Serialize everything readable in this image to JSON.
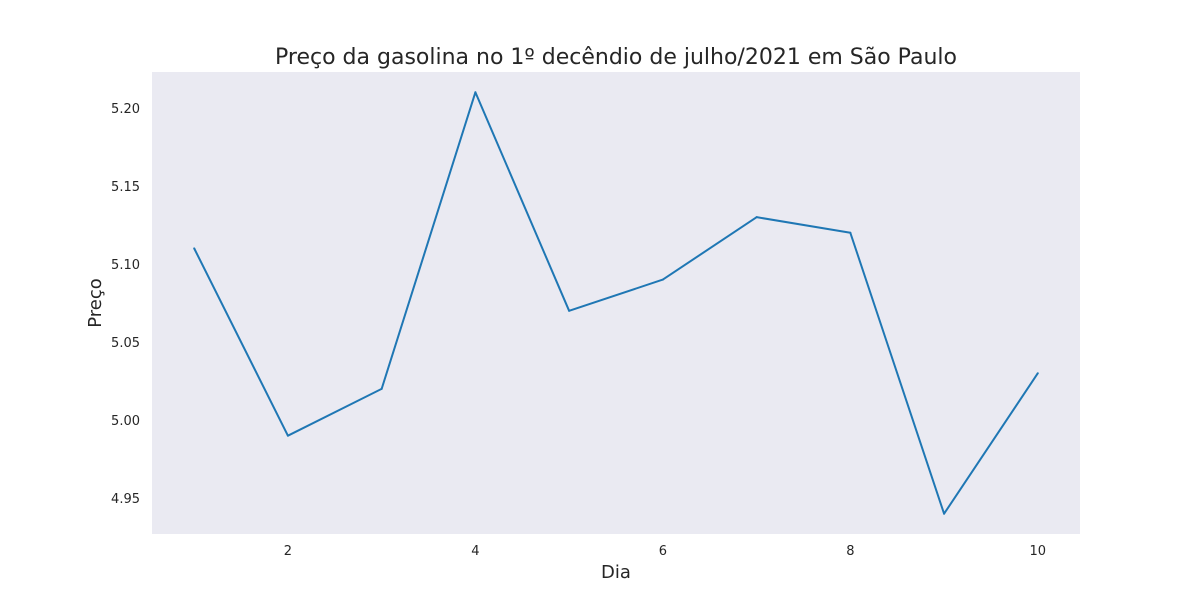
{
  "chart_data": {
    "type": "line",
    "title": "Preço da gasolina no 1º decêndio de julho/2021 em São Paulo",
    "xlabel": "Dia",
    "ylabel": "Preço",
    "x": [
      1,
      2,
      3,
      4,
      5,
      6,
      7,
      8,
      9,
      10
    ],
    "series": [
      {
        "values": [
          5.11,
          4.99,
          5.02,
          5.21,
          5.07,
          5.09,
          5.13,
          5.12,
          4.94,
          5.03
        ]
      }
    ],
    "xticks": [
      2,
      4,
      6,
      8,
      10
    ],
    "xtick_labels": [
      "2",
      "4",
      "6",
      "8",
      "10"
    ],
    "yticks": [
      4.95,
      5.0,
      5.05,
      5.1,
      5.15,
      5.2
    ],
    "ytick_labels": [
      "4.95",
      "5.00",
      "5.05",
      "5.10",
      "5.15",
      "5.20"
    ],
    "xlim": [
      0.55,
      10.45
    ],
    "ylim": [
      4.927,
      5.223
    ],
    "grid": false,
    "colors": {
      "plot_background": "#eaeaf2",
      "line": "#1f77b4",
      "text": "#262626"
    }
  }
}
